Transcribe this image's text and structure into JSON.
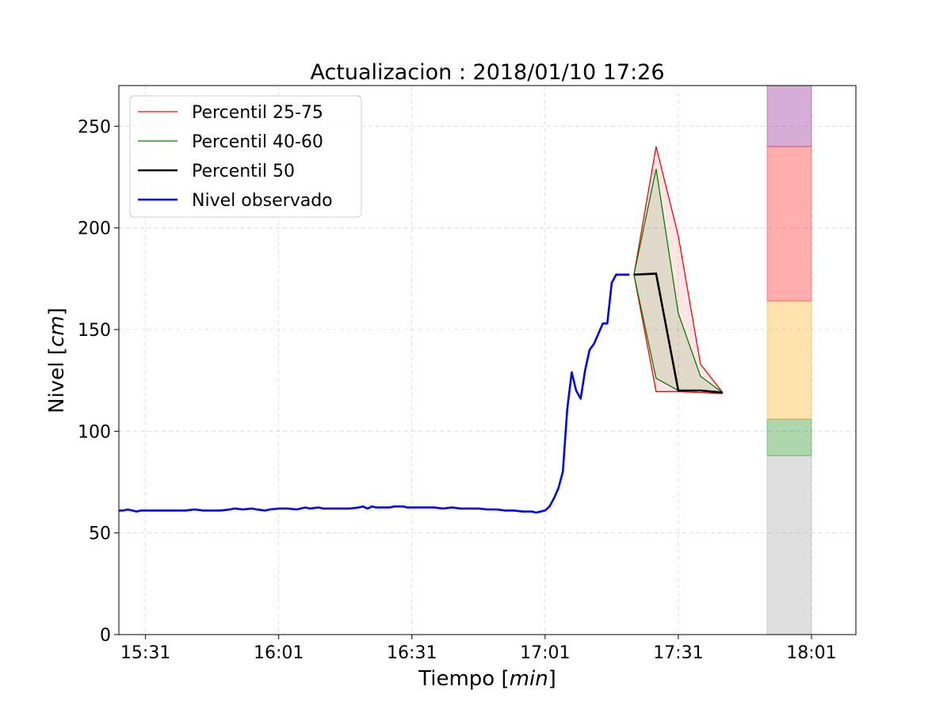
{
  "chart_data": {
    "type": "line",
    "title": "Actualizacion : 2018/01/10 17:26",
    "xlabel": "Tiempo",
    "xlabel_unit": "min",
    "ylabel": "Nivel",
    "ylabel_unit": "cm",
    "grid": true,
    "legend_position": "upper-left",
    "xlim": [
      "15:25",
      "18:11"
    ],
    "ylim": [
      0,
      270
    ],
    "xticks": [
      "15:31",
      "16:01",
      "16:31",
      "17:01",
      "17:31",
      "18:01"
    ],
    "yticks": [
      0,
      50,
      100,
      150,
      200,
      250
    ],
    "legend": [
      {
        "label": "Percentil 25-75",
        "color": "#ff0000"
      },
      {
        "label": "Percentil 40-60",
        "color": "#008000"
      },
      {
        "label": "Percentil 50",
        "color": "#000000"
      },
      {
        "label": "Nivel observado",
        "color": "#0000ff"
      }
    ],
    "observed": {
      "name": "Nivel observado",
      "color": "#0000ff",
      "x": [
        "15:25",
        "15:26",
        "15:27",
        "15:28",
        "15:29",
        "15:30",
        "15:31",
        "15:32",
        "15:34",
        "15:36",
        "15:37",
        "15:38",
        "15:40",
        "15:42",
        "15:44",
        "15:46",
        "15:48",
        "15:50",
        "15:51",
        "15:53",
        "15:55",
        "15:56",
        "15:58",
        "15:59",
        "16:01",
        "16:03",
        "16:05",
        "16:06",
        "16:07",
        "16:08",
        "16:10",
        "16:11",
        "16:13",
        "16:15",
        "16:17",
        "16:19",
        "16:20",
        "16:21",
        "16:22",
        "16:23",
        "16:25",
        "16:26",
        "16:27",
        "16:29",
        "16:30",
        "16:32",
        "16:34",
        "16:36",
        "16:38",
        "16:40",
        "16:42",
        "16:44",
        "16:46",
        "16:48",
        "16:50",
        "16:52",
        "16:54",
        "16:56",
        "16:58",
        "16:59",
        "17:00",
        "17:01",
        "17:02",
        "17:03",
        "17:04",
        "17:05",
        "17:06",
        "17:07",
        "17:08",
        "17:09",
        "17:10",
        "17:11",
        "17:12",
        "17:13",
        "17:14",
        "17:15",
        "17:16",
        "17:17",
        "17:18",
        "17:19",
        "17:20"
      ],
      "y": [
        61,
        61,
        61.5,
        61,
        60.5,
        61,
        61,
        61,
        61,
        61,
        61,
        61,
        61,
        61.5,
        61,
        61,
        61,
        61.5,
        62,
        61.5,
        62,
        61.5,
        61,
        61.5,
        62,
        62,
        61.5,
        62,
        62.5,
        62,
        62.5,
        62,
        62,
        62,
        62,
        62.5,
        63,
        62,
        63,
        62.5,
        62.5,
        62.5,
        63,
        63,
        62.5,
        62.5,
        62.5,
        62.5,
        62,
        62.5,
        62,
        62,
        62,
        61.5,
        61.5,
        61,
        61,
        60.5,
        60.5,
        60,
        60.5,
        61,
        63,
        67,
        72,
        80,
        111,
        129,
        120,
        116,
        130,
        140,
        143,
        148,
        153,
        153,
        173,
        177,
        177,
        177,
        177
      ]
    },
    "p50": {
      "name": "Percentil 50",
      "color": "#000000",
      "x": [
        "17:21",
        "17:26",
        "17:31",
        "17:36",
        "17:41"
      ],
      "y": [
        177,
        177.5,
        120,
        120,
        119
      ]
    },
    "p40_60": {
      "name": "Percentil 40-60",
      "color": "#008000",
      "x": [
        "17:21",
        "17:26",
        "17:31",
        "17:36",
        "17:41"
      ],
      "low": [
        177,
        126,
        120,
        120,
        119
      ],
      "high": [
        177,
        229,
        158,
        127,
        119
      ]
    },
    "p25_75": {
      "name": "Percentil 25-75",
      "color": "#ff0000",
      "x": [
        "17:21",
        "17:26",
        "17:31",
        "17:36",
        "17:41"
      ],
      "low": [
        177,
        119.5,
        119.5,
        119,
        118.5
      ],
      "high": [
        177,
        240,
        196,
        133,
        119
      ]
    },
    "level_bands": {
      "x_start": "17:51",
      "x_end": "18:01",
      "bands": [
        {
          "from": 0,
          "to": 88,
          "color": "#999999"
        },
        {
          "from": 88,
          "to": 106,
          "color": "#008000"
        },
        {
          "from": 106,
          "to": 164,
          "color": "#ffa500"
        },
        {
          "from": 164,
          "to": 240,
          "color": "#ff0000"
        },
        {
          "from": 240,
          "to": 270,
          "color": "#800080"
        }
      ]
    }
  }
}
